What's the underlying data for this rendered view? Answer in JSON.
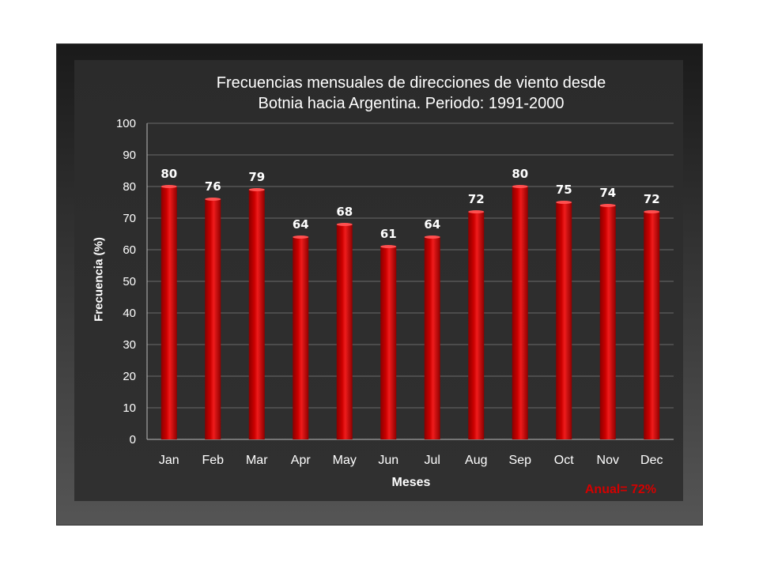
{
  "chart_data": {
    "type": "bar",
    "title_lines": [
      "Frecuencias mensuales de direcciones de viento desde",
      "Botnia hacia Argentina.  Periodo: 1991-2000"
    ],
    "xlabel": "Meses",
    "ylabel": "Frecuencia (%)",
    "ylim": [
      0,
      100
    ],
    "yticks": [
      "0",
      "10",
      "20",
      "30",
      "40",
      "50",
      "60",
      "70",
      "80",
      "90",
      "100"
    ],
    "categories": [
      "Jan",
      "Feb",
      "Mar",
      "Apr",
      "May",
      "Jun",
      "Jul",
      "Aug",
      "Sep",
      "Oct",
      "Nov",
      "Dec"
    ],
    "values": [
      80,
      76,
      79,
      64,
      68,
      61,
      64,
      72,
      80,
      75,
      74,
      72
    ],
    "data_labels": [
      "80",
      "76",
      "79",
      "64",
      "68",
      "61",
      "64",
      "72",
      "80",
      "75",
      "74",
      "72"
    ],
    "annotation": "Anual= 72%",
    "grid": true,
    "bar_color": "#cc0000",
    "background_color": "#2e2e2e"
  }
}
